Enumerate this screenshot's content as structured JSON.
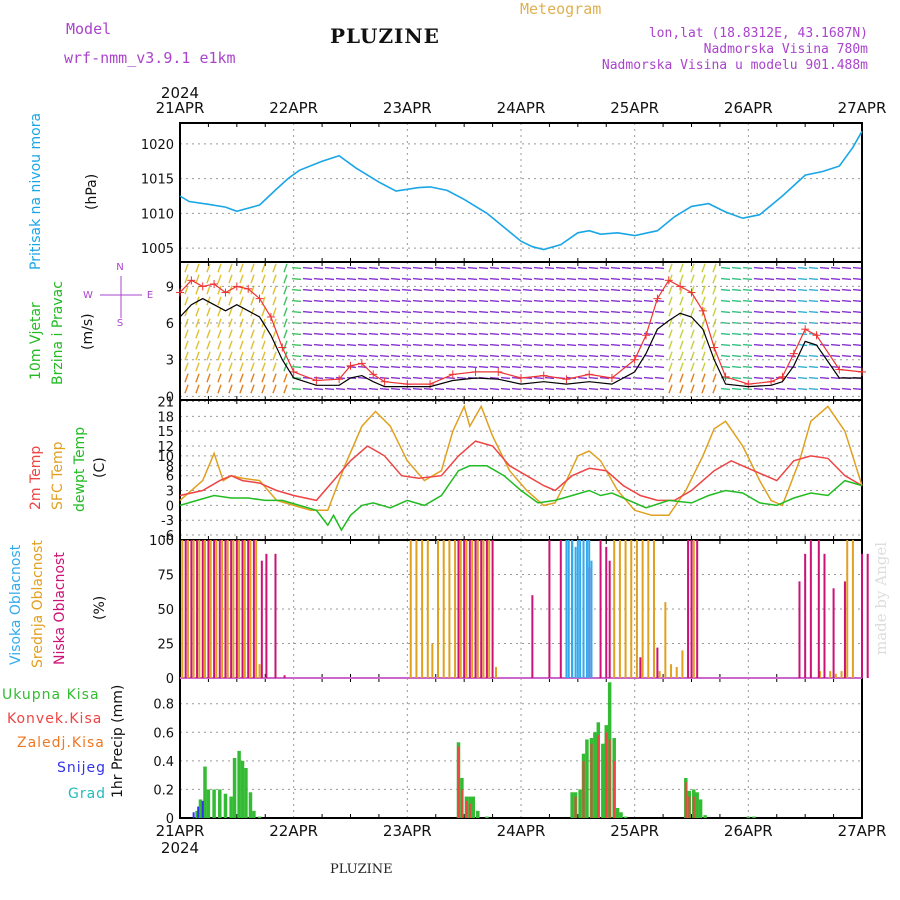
{
  "header": {
    "model_label": "Model",
    "model_name": "wrf-nmm_v3.9.1 e1km",
    "station": "PLUZINE",
    "meteogram": "Meteogram",
    "lonlat": "lon,lat (18.8312E, 43.1687N)",
    "altitude": "Nadmorska Visina 780m",
    "model_altitude": "Nadmorska Visina u modelu 901.488m",
    "watermark": "made by Angel",
    "footer_station": "PLUZINE"
  },
  "colors": {
    "pressure": "#1aa6e6",
    "wind_speed": "#000000",
    "gust": "#ee3333",
    "temp2m": "#ee4444",
    "sfc": "#e0a020",
    "dewpt": "#22bb22",
    "high_cloud": "#33aaee",
    "mid_cloud": "#e0a020",
    "low_cloud": "#cc1177",
    "total_precip": "#33bb33",
    "conv_precip": "#ee4444",
    "frozen_precip": "#ee7722",
    "snow": "#3333ee",
    "hail": "#22bbbb"
  },
  "chart_data": [
    {
      "type": "line",
      "name": "pressure",
      "ylabel_lines": [
        "Pritisak na nivou mora",
        "(hPa)"
      ],
      "ylim": [
        1003,
        1023
      ],
      "yticks": [
        1005,
        1010,
        1015,
        1020
      ],
      "grid": true,
      "x_year": "2024",
      "x_ticks": [
        "21APR",
        "22APR",
        "23APR",
        "24APR",
        "25APR",
        "26APR",
        "27APR"
      ],
      "x_days": [
        0,
        6
      ],
      "series": [
        {
          "x": [
            0,
            0.08,
            0.25,
            0.4,
            0.5,
            0.7,
            0.85,
            0.95,
            1.05,
            1.25,
            1.4,
            1.55,
            1.75,
            1.9,
            2.1,
            2.2,
            2.35,
            2.5,
            2.7,
            2.85,
            3.0,
            3.1,
            3.2,
            3.35,
            3.5,
            3.6,
            3.7,
            3.85,
            4.0,
            4.2,
            4.35,
            4.5,
            4.65,
            4.8,
            4.95,
            5.1,
            5.3,
            5.5,
            5.65,
            5.8,
            5.92,
            6.0
          ],
          "values": [
            1012.5,
            1011.7,
            1011.3,
            1010.9,
            1010.3,
            1011.2,
            1013.5,
            1015.0,
            1016.2,
            1017.5,
            1018.3,
            1016.5,
            1014.5,
            1013.2,
            1013.7,
            1013.8,
            1013.3,
            1012.0,
            1010.0,
            1008.0,
            1006.0,
            1005.2,
            1004.8,
            1005.5,
            1007.2,
            1007.5,
            1007.0,
            1007.2,
            1006.8,
            1007.5,
            1009.5,
            1011.0,
            1011.4,
            1010.2,
            1009.3,
            1009.8,
            1012.5,
            1015.5,
            1016.0,
            1016.8,
            1019.5,
            1021.8
          ]
        }
      ]
    },
    {
      "type": "line",
      "name": "wind",
      "ylabel_lines": [
        "10m Vjetar",
        "Brzina i Pravac",
        "(m/s)"
      ],
      "compass": [
        "N",
        "W",
        "E",
        "S"
      ],
      "ylim": [
        -0.3,
        11
      ],
      "yticks": [
        0,
        3,
        6,
        9
      ],
      "grid": true,
      "series": [
        {
          "name": "speed",
          "x": [
            0,
            0.1,
            0.2,
            0.3,
            0.4,
            0.5,
            0.6,
            0.7,
            0.8,
            0.9,
            1.0,
            1.2,
            1.4,
            1.5,
            1.6,
            1.7,
            1.8,
            2.0,
            2.2,
            2.4,
            2.6,
            2.8,
            3.0,
            3.2,
            3.4,
            3.6,
            3.8,
            4.0,
            4.1,
            4.2,
            4.3,
            4.4,
            4.5,
            4.6,
            4.7,
            4.8,
            5.0,
            5.2,
            5.3,
            5.4,
            5.5,
            5.6,
            5.8,
            6.0
          ],
          "values": [
            6.5,
            7.5,
            8.0,
            7.5,
            7.0,
            7.5,
            7.0,
            6.5,
            5.0,
            3.0,
            1.5,
            0.9,
            0.9,
            1.5,
            1.7,
            1.2,
            0.8,
            0.8,
            0.8,
            1.3,
            1.5,
            1.4,
            1.0,
            1.2,
            1.0,
            1.2,
            1.0,
            2.0,
            3.5,
            5.5,
            6.2,
            6.8,
            6.5,
            5.5,
            3.0,
            1.0,
            0.8,
            0.9,
            1.2,
            2.5,
            4.5,
            4.2,
            1.5,
            1.5
          ]
        },
        {
          "name": "gust",
          "x": [
            0,
            0.1,
            0.2,
            0.3,
            0.4,
            0.5,
            0.6,
            0.7,
            0.8,
            0.9,
            1.0,
            1.2,
            1.4,
            1.5,
            1.6,
            1.7,
            1.8,
            2.0,
            2.2,
            2.4,
            2.6,
            2.8,
            3.0,
            3.2,
            3.4,
            3.6,
            3.8,
            4.0,
            4.1,
            4.2,
            4.3,
            4.4,
            4.5,
            4.6,
            4.7,
            4.8,
            5.0,
            5.2,
            5.3,
            5.4,
            5.5,
            5.6,
            5.8,
            6.0
          ],
          "values": [
            8.5,
            9.5,
            9.0,
            9.2,
            8.5,
            9.0,
            8.8,
            8.0,
            6.5,
            4.0,
            2.0,
            1.3,
            1.4,
            2.5,
            2.7,
            1.8,
            1.2,
            1.0,
            1.0,
            1.8,
            2.0,
            2.0,
            1.5,
            1.7,
            1.4,
            1.8,
            1.5,
            3.0,
            5.0,
            8.0,
            9.5,
            9.0,
            8.5,
            7.0,
            4.0,
            1.6,
            1.0,
            1.2,
            1.6,
            3.5,
            5.5,
            5.0,
            2.2,
            2.0
          ]
        }
      ]
    },
    {
      "type": "line",
      "name": "temperature",
      "ylabel_lines": [
        "2m Temp",
        "SFC Temp",
        "dewpt Temp",
        "(C)"
      ],
      "ylim": [
        -7,
        21.3
      ],
      "yticks": [
        -6,
        -3,
        0,
        3,
        6,
        8,
        10,
        12,
        15,
        18,
        21
      ],
      "grid": true,
      "series": [
        {
          "name": "2m Temp",
          "x": [
            0,
            0.2,
            0.35,
            0.45,
            0.55,
            0.7,
            0.85,
            1.0,
            1.2,
            1.35,
            1.5,
            1.65,
            1.8,
            1.95,
            2.1,
            2.3,
            2.45,
            2.6,
            2.75,
            2.9,
            3.05,
            3.2,
            3.3,
            3.45,
            3.6,
            3.75,
            3.9,
            4.05,
            4.2,
            4.35,
            4.5,
            4.7,
            4.85,
            5.0,
            5.15,
            5.25,
            5.4,
            5.55,
            5.7,
            5.85,
            6.0
          ],
          "values": [
            2.0,
            3.0,
            5.0,
            6.0,
            5.0,
            4.5,
            3.0,
            2.0,
            1.0,
            5.0,
            9.0,
            12.0,
            10.0,
            6.0,
            5.5,
            6.0,
            10.0,
            13.0,
            12.0,
            8.0,
            6.0,
            4.0,
            3.0,
            6.0,
            7.5,
            7.0,
            4.0,
            2.0,
            1.0,
            1.0,
            3.0,
            7.0,
            9.0,
            7.5,
            6.0,
            5.0,
            9.0,
            10.0,
            9.5,
            6.0,
            4.0
          ]
        },
        {
          "name": "SFC Temp",
          "x": [
            0,
            0.2,
            0.3,
            0.38,
            0.45,
            0.55,
            0.7,
            0.85,
            1.0,
            1.15,
            1.3,
            1.45,
            1.6,
            1.72,
            1.85,
            2.0,
            2.15,
            2.3,
            2.4,
            2.5,
            2.55,
            2.65,
            2.75,
            2.9,
            3.05,
            3.2,
            3.3,
            3.4,
            3.5,
            3.6,
            3.7,
            3.85,
            4.0,
            4.15,
            4.3,
            4.45,
            4.6,
            4.7,
            4.8,
            4.95,
            5.1,
            5.2,
            5.3,
            5.45,
            5.55,
            5.7,
            5.85,
            6.0
          ],
          "values": [
            1.0,
            5.0,
            10.5,
            5.0,
            6.0,
            5.5,
            5.0,
            1.0,
            0.0,
            -1.0,
            -1.0,
            8.0,
            16.0,
            19.0,
            16.0,
            9.0,
            5.0,
            7.0,
            15.0,
            20.0,
            16.0,
            20.0,
            14.0,
            7.0,
            3.0,
            0.0,
            0.5,
            5.0,
            10.0,
            11.0,
            9.0,
            3.0,
            -1.0,
            -2.0,
            -2.0,
            3.0,
            10.0,
            15.5,
            17.0,
            12.0,
            5.0,
            1.0,
            0.0,
            9.0,
            17.0,
            20.0,
            15.0,
            4.0
          ]
        },
        {
          "name": "dewpt Temp",
          "x": [
            0,
            0.15,
            0.3,
            0.45,
            0.6,
            0.75,
            0.9,
            1.05,
            1.2,
            1.3,
            1.35,
            1.42,
            1.5,
            1.6,
            1.7,
            1.85,
            2.0,
            2.15,
            2.3,
            2.45,
            2.55,
            2.7,
            2.85,
            3.0,
            3.15,
            3.3,
            3.45,
            3.6,
            3.7,
            3.8,
            3.95,
            4.1,
            4.3,
            4.5,
            4.65,
            4.8,
            4.95,
            5.1,
            5.25,
            5.4,
            5.55,
            5.7,
            5.85,
            6.0
          ],
          "values": [
            0.0,
            1.0,
            2.0,
            1.5,
            1.5,
            1.0,
            1.0,
            0.0,
            -1.0,
            -4.0,
            -2.0,
            -5.0,
            -2.0,
            0.0,
            0.5,
            -0.5,
            1.0,
            0.0,
            2.0,
            7.0,
            8.0,
            8.0,
            6.0,
            3.0,
            0.5,
            1.0,
            2.0,
            3.0,
            2.0,
            2.5,
            1.0,
            -0.5,
            1.0,
            0.5,
            2.0,
            3.0,
            2.5,
            0.5,
            0.0,
            1.5,
            2.5,
            2.0,
            5.0,
            4.0
          ]
        }
      ]
    },
    {
      "type": "bar",
      "name": "cloud",
      "ylabel_lines": [
        "Visoka Oblacnost",
        "Srednja Oblacnost",
        "Niska Oblacnost",
        "(%)"
      ],
      "ylim": [
        0,
        100
      ],
      "yticks": [
        0,
        25,
        50,
        75,
        100
      ],
      "grid": true,
      "series": [
        {
          "name": "Visoka Oblacnost",
          "x": [
            3.4,
            3.42,
            3.45,
            3.48,
            3.5,
            3.52,
            3.55,
            3.58,
            3.6,
            3.62
          ],
          "values": [
            100,
            100,
            100,
            95,
            100,
            100,
            100,
            100,
            100,
            85
          ]
        },
        {
          "name": "Srednja Oblacnost",
          "x": [
            0.02,
            0.07,
            0.12,
            0.17,
            0.22,
            0.27,
            0.32,
            0.37,
            0.42,
            0.47,
            0.52,
            0.57,
            0.62,
            0.67,
            0.7,
            2.03,
            2.08,
            2.13,
            2.18,
            2.22,
            2.27,
            2.32,
            2.37,
            2.42,
            2.47,
            2.52,
            2.57,
            2.62,
            2.67,
            2.72,
            2.78,
            3.82,
            3.87,
            3.92,
            3.97,
            4.02,
            4.07,
            4.12,
            4.17,
            4.22,
            4.27,
            4.32,
            4.37,
            4.42,
            4.47,
            4.52,
            5.63,
            5.67,
            5.72,
            5.77,
            5.82,
            5.87,
            5.92
          ],
          "values": [
            100,
            100,
            100,
            100,
            100,
            100,
            100,
            100,
            100,
            100,
            100,
            100,
            100,
            100,
            10,
            100,
            100,
            100,
            100,
            25,
            100,
            100,
            100,
            100,
            100,
            100,
            100,
            100,
            100,
            100,
            8,
            100,
            100,
            100,
            100,
            100,
            100,
            100,
            100,
            5,
            55,
            10,
            8,
            20,
            100,
            100,
            5,
            22,
            5,
            3,
            5,
            100,
            100
          ]
        },
        {
          "name": "Niska Oblacnost",
          "x": [
            0.05,
            0.1,
            0.15,
            0.2,
            0.25,
            0.3,
            0.35,
            0.4,
            0.45,
            0.5,
            0.55,
            0.6,
            0.65,
            0.72,
            0.76,
            0.84,
            0.92,
            2.45,
            2.5,
            2.55,
            2.6,
            2.65,
            2.7,
            2.75,
            3.1,
            3.25,
            3.35,
            3.45,
            3.55,
            3.6,
            3.7,
            3.75,
            3.78,
            4.05,
            4.2,
            4.47,
            4.5,
            4.55,
            5.45,
            5.5,
            5.55,
            5.62,
            5.67,
            5.75,
            5.85,
            6.0,
            6.05
          ],
          "values": [
            100,
            100,
            100,
            100,
            100,
            100,
            100,
            100,
            100,
            100,
            100,
            100,
            100,
            85,
            90,
            90,
            2,
            100,
            100,
            100,
            100,
            100,
            100,
            100,
            60,
            100,
            100,
            100,
            100,
            80,
            100,
            95,
            85,
            15,
            22,
            100,
            100,
            100,
            70,
            90,
            100,
            100,
            90,
            65,
            70,
            90,
            90
          ]
        }
      ]
    },
    {
      "type": "bar",
      "name": "precip",
      "ylabel_lines": [
        "1hr Precip (mm)"
      ],
      "ylim": [
        0,
        0.98
      ],
      "yticks": [
        0,
        0.2,
        0.4,
        0.6,
        0.8
      ],
      "grid": true,
      "legend": [
        "Ukupna Kisa",
        "Konvek.Kisa",
        "Zaledj.Kisa",
        "Snijeg",
        "Grad"
      ],
      "series": [
        {
          "name": "Ukupna Kisa",
          "x": [
            0.15,
            0.18,
            0.22,
            0.25,
            0.3,
            0.35,
            0.4,
            0.45,
            0.48,
            0.52,
            0.55,
            0.58,
            0.62,
            0.65,
            0.7,
            2.45,
            2.48,
            2.52,
            2.55,
            2.58,
            2.62,
            2.7,
            3.45,
            3.48,
            3.52,
            3.55,
            3.58,
            3.62,
            3.65,
            3.68,
            3.72,
            3.75,
            3.78,
            3.82,
            3.85,
            3.88,
            3.92,
            4.45,
            4.48,
            4.52,
            4.55,
            4.58,
            4.62,
            5.0,
            5.05
          ],
          "values": [
            0.05,
            0.13,
            0.36,
            0.2,
            0.2,
            0.2,
            0.17,
            0.15,
            0.42,
            0.47,
            0.4,
            0.35,
            0.18,
            0.05,
            0.01,
            0.53,
            0.28,
            0.15,
            0.15,
            0.15,
            0.05,
            0.01,
            0.18,
            0.18,
            0.2,
            0.45,
            0.55,
            0.56,
            0.6,
            0.67,
            0.52,
            0.65,
            0.95,
            0.56,
            0.07,
            0.04,
            0.01,
            0.28,
            0.19,
            0.2,
            0.18,
            0.13,
            0.02,
            0.01,
            0.01
          ]
        },
        {
          "name": "Konvek.Kisa",
          "x": [
            2.45,
            2.48,
            2.52,
            2.55,
            3.48,
            3.55,
            3.62,
            3.68,
            3.75,
            3.78,
            3.82,
            4.45,
            4.48,
            4.52
          ],
          "values": [
            0.5,
            0.2,
            0.12,
            0.1,
            0.15,
            0.4,
            0.52,
            0.58,
            0.6,
            0.55,
            0.4,
            0.25,
            0.15,
            0.15
          ]
        },
        {
          "name": "Snijeg",
          "x": [
            0.12,
            0.16,
            0.2
          ],
          "values": [
            0.04,
            0.08,
            0.12
          ]
        }
      ]
    }
  ]
}
